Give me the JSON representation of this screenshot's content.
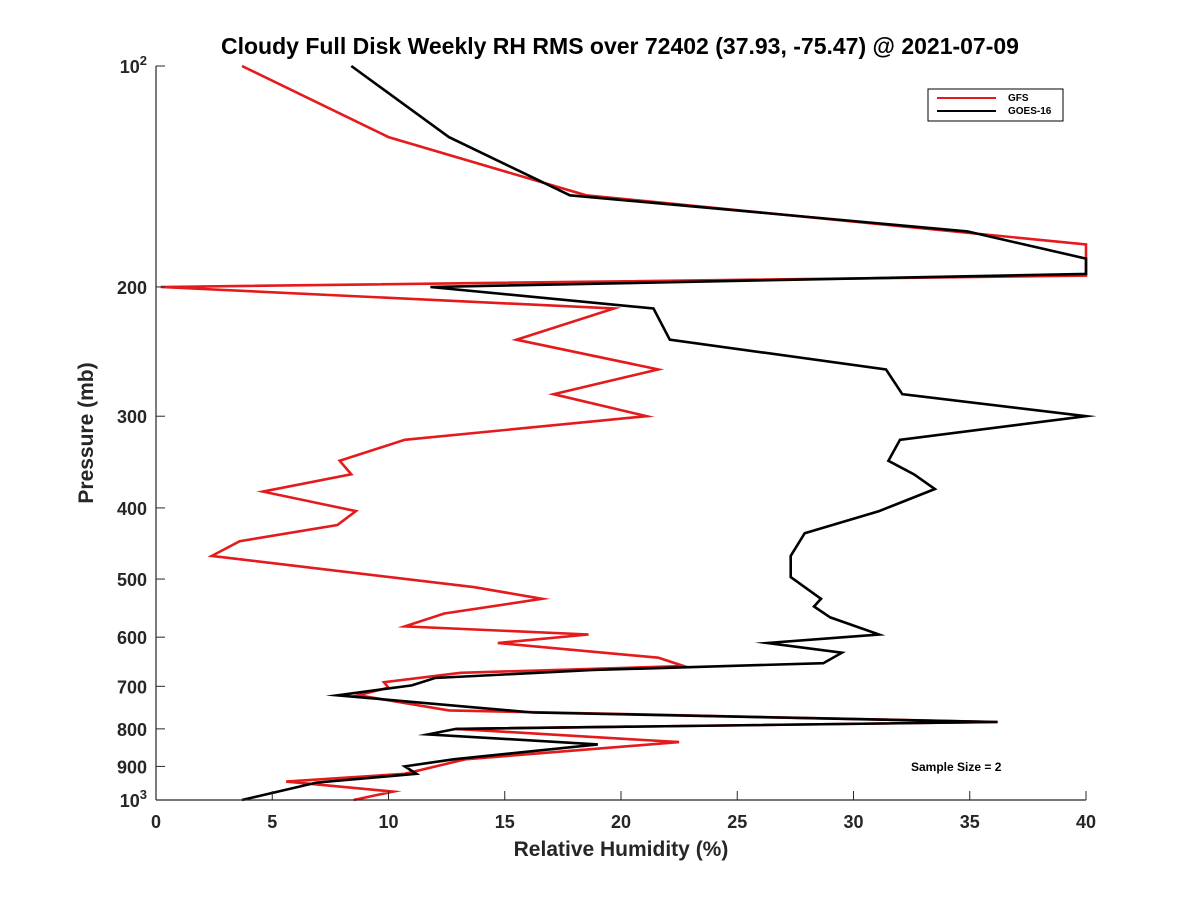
{
  "chart_data": {
    "type": "line",
    "title": "Cloudy Full Disk Weekly RH RMS over 72402 (37.93, -75.47) @ 2021-07-09",
    "xlabel": "Relative Humidity (%)",
    "ylabel": "Pressure (mb)",
    "xlim": [
      0,
      40
    ],
    "ylim": [
      100,
      1000
    ],
    "y_scale": "log",
    "y_reversed": true,
    "x_ticks": [
      0,
      5,
      10,
      15,
      20,
      25,
      30,
      35,
      40
    ],
    "y_ticks": [
      {
        "value": 100,
        "label": "10",
        "exp": "2"
      },
      {
        "value": 200,
        "label": "200"
      },
      {
        "value": 300,
        "label": "300"
      },
      {
        "value": 400,
        "label": "400"
      },
      {
        "value": 500,
        "label": "500"
      },
      {
        "value": 600,
        "label": "600"
      },
      {
        "value": 700,
        "label": "700"
      },
      {
        "value": 800,
        "label": "800"
      },
      {
        "value": 900,
        "label": "900"
      },
      {
        "value": 1000,
        "label": "10",
        "exp": "3"
      }
    ],
    "grid": false,
    "legend_position": "top-right",
    "annotation": "Sample Size = 2",
    "series": [
      {
        "name": "GFS",
        "color": "#e41a1c",
        "points": [
          [
            3.7,
            100
          ],
          [
            10.0,
            125
          ],
          [
            18.5,
            150
          ],
          [
            40.0,
            175
          ],
          [
            40.0,
            193
          ],
          [
            0.2,
            200
          ],
          [
            19.7,
            214
          ],
          [
            15.5,
            236
          ],
          [
            21.6,
            259
          ],
          [
            17.1,
            280
          ],
          [
            21.1,
            300
          ],
          [
            10.7,
            323
          ],
          [
            7.9,
            345
          ],
          [
            8.4,
            360
          ],
          [
            4.6,
            380
          ],
          [
            8.6,
            404
          ],
          [
            7.8,
            422
          ],
          [
            3.6,
            444
          ],
          [
            2.4,
            465
          ],
          [
            13.7,
            513
          ],
          [
            16.6,
            532
          ],
          [
            12.4,
            557
          ],
          [
            10.7,
            580
          ],
          [
            18.6,
            595
          ],
          [
            14.7,
            611
          ],
          [
            21.6,
            640
          ],
          [
            22.7,
            657
          ],
          [
            13.1,
            671
          ],
          [
            9.8,
            691
          ],
          [
            10.0,
            703
          ],
          [
            8.7,
            720
          ],
          [
            12.6,
            755
          ],
          [
            36.2,
            783
          ],
          [
            12.9,
            800
          ],
          [
            22.5,
            834
          ],
          [
            13.3,
            880
          ],
          [
            10.7,
            921
          ],
          [
            5.6,
            944
          ],
          [
            10.2,
            974
          ],
          [
            8.5,
            1000
          ]
        ]
      },
      {
        "name": "GOES-16",
        "color": "#000000",
        "points": [
          [
            8.4,
            100
          ],
          [
            12.6,
            125
          ],
          [
            17.8,
            150
          ],
          [
            34.9,
            168
          ],
          [
            40.0,
            183
          ],
          [
            40.0,
            192
          ],
          [
            11.8,
            200
          ],
          [
            21.4,
            214
          ],
          [
            22.1,
            236
          ],
          [
            31.4,
            259
          ],
          [
            32.1,
            280
          ],
          [
            40.0,
            300
          ],
          [
            32.0,
            323
          ],
          [
            31.5,
            345
          ],
          [
            32.6,
            360
          ],
          [
            33.5,
            377
          ],
          [
            31.1,
            404
          ],
          [
            27.9,
            433
          ],
          [
            27.3,
            465
          ],
          [
            27.3,
            497
          ],
          [
            28.6,
            532
          ],
          [
            28.3,
            545
          ],
          [
            29.0,
            564
          ],
          [
            31.1,
            595
          ],
          [
            26.3,
            611
          ],
          [
            29.5,
            630
          ],
          [
            28.7,
            651
          ],
          [
            18.8,
            665
          ],
          [
            12.0,
            682
          ],
          [
            11.0,
            698
          ],
          [
            7.8,
            720
          ],
          [
            16.2,
            760
          ],
          [
            36.2,
            783
          ],
          [
            12.9,
            800
          ],
          [
            11.7,
            814
          ],
          [
            19.0,
            840
          ],
          [
            12.8,
            880
          ],
          [
            10.7,
            900
          ],
          [
            11.2,
            921
          ],
          [
            6.9,
            947
          ],
          [
            3.7,
            1000
          ]
        ]
      }
    ]
  }
}
